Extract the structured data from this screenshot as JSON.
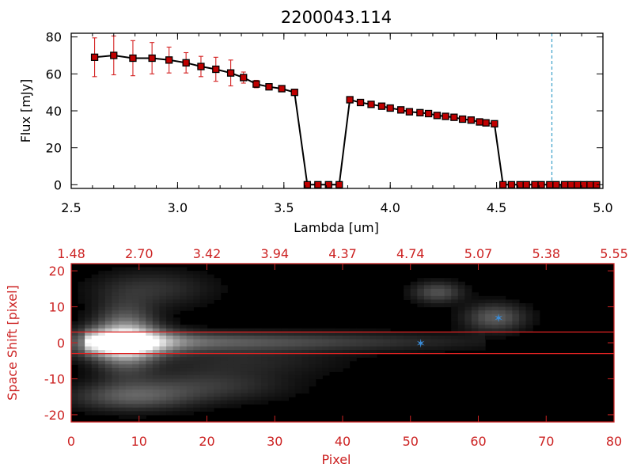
{
  "chart_data": [
    {
      "type": "line",
      "title": "2200043.114",
      "xlabel": "Lambda [um]",
      "ylabel": "Flux [mJy]",
      "xlim": [
        2.5,
        5.0
      ],
      "ylim": [
        -2,
        82
      ],
      "x_ticks": [
        "2.5",
        "3.0",
        "3.5",
        "4.0",
        "4.5",
        "5.0"
      ],
      "y_ticks": [
        "0",
        "20",
        "40",
        "60",
        "80"
      ],
      "grid": false,
      "colors": {
        "line": "#000000",
        "marker": "#c00000",
        "error_bar": "#d42020",
        "vline": "#3aa0c8"
      },
      "vline_x": 4.76,
      "series": [
        {
          "x": [
            2.61,
            2.7,
            2.79,
            2.88,
            2.96,
            3.04,
            3.11,
            3.18,
            3.25,
            3.31,
            3.37,
            3.43,
            3.49,
            3.55,
            3.61,
            3.66,
            3.71,
            3.76,
            3.81,
            3.86,
            3.91,
            3.96,
            4.0,
            4.05,
            4.09,
            4.14,
            4.18,
            4.22,
            4.26,
            4.3,
            4.34,
            4.38,
            4.42,
            4.45,
            4.49,
            4.53,
            4.57,
            4.61,
            4.64,
            4.68,
            4.71,
            4.75,
            4.78,
            4.82,
            4.85,
            4.88,
            4.91,
            4.94,
            4.97
          ],
          "y": [
            69,
            70,
            68.5,
            68.5,
            67.5,
            66,
            64,
            62.5,
            60.5,
            58,
            54.5,
            53,
            52,
            50,
            0,
            0,
            0,
            0,
            46,
            44.5,
            43.5,
            42.5,
            41.5,
            40.5,
            39.5,
            39,
            38.5,
            37.5,
            37,
            36.5,
            35.5,
            35,
            34,
            33.5,
            33,
            0,
            0,
            0,
            0,
            0,
            0,
            0,
            0,
            0,
            0,
            0,
            0,
            0,
            0
          ],
          "err": [
            10.5,
            10.5,
            9.5,
            8.5,
            7,
            5.5,
            5.5,
            6.5,
            7,
            3,
            2,
            1,
            1,
            1,
            0,
            0,
            0,
            0,
            1,
            1,
            1,
            1,
            1,
            1,
            1,
            1,
            1,
            1,
            1,
            1,
            1,
            1,
            1,
            1,
            1,
            0,
            0,
            0,
            0,
            0,
            0,
            0,
            0,
            0,
            0,
            0,
            0,
            0,
            0
          ]
        }
      ]
    },
    {
      "type": "heatmap",
      "xlabel": "Pixel",
      "ylabel": "Space Shift [pixel]",
      "xlim": [
        0,
        80
      ],
      "ylim": [
        -22,
        22
      ],
      "x_ticks": [
        "0",
        "10",
        "20",
        "30",
        "40",
        "50",
        "60",
        "70",
        "80"
      ],
      "y_ticks": [
        "-20",
        "-10",
        "0",
        "10",
        "20"
      ],
      "top_ticks": [
        "1.48",
        "2.70",
        "3.42",
        "3.94",
        "4.37",
        "4.74",
        "5.07",
        "5.38",
        "5.55"
      ],
      "colormap": "grayscale",
      "colors": {
        "axis": "#cc2222",
        "hline": "#dd2222",
        "star": "#3a8cd8",
        "background": "#000000"
      },
      "hlines": [
        3,
        -3
      ],
      "markers": [
        {
          "x": 51.5,
          "y": 0
        },
        {
          "x": 63,
          "y": 7
        }
      ]
    }
  ]
}
